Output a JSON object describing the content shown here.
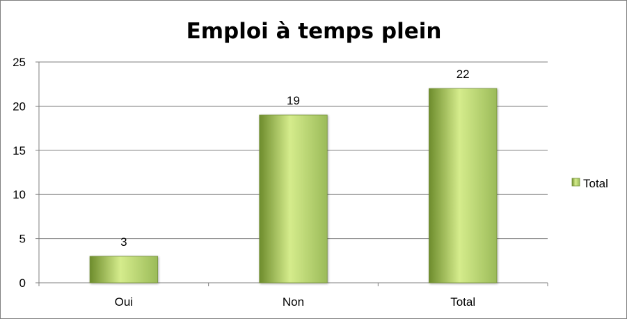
{
  "chart_data": {
    "type": "bar",
    "title": "Emploi à temps plein",
    "xlabel": "",
    "ylabel": "",
    "categories": [
      "Oui",
      "Non",
      "Total"
    ],
    "series": [
      {
        "name": "Total",
        "values": [
          3,
          19,
          22
        ]
      }
    ],
    "data_labels": [
      "3",
      "19",
      "22"
    ],
    "ylim": [
      0,
      25
    ],
    "y_ticks": [
      "0",
      "5",
      "10",
      "15",
      "20",
      "25"
    ],
    "grid": true,
    "legend": {
      "position": "right",
      "entries": [
        "Total"
      ]
    },
    "colors": {
      "bar_fill_light": "#d5ec8c",
      "bar_fill": "#9bbb59",
      "bar_fill_dark": "#6d8c2c",
      "bar_edge": "#76923c",
      "gridline": "#7f7f7f",
      "axis": "#7f7f7f"
    }
  }
}
